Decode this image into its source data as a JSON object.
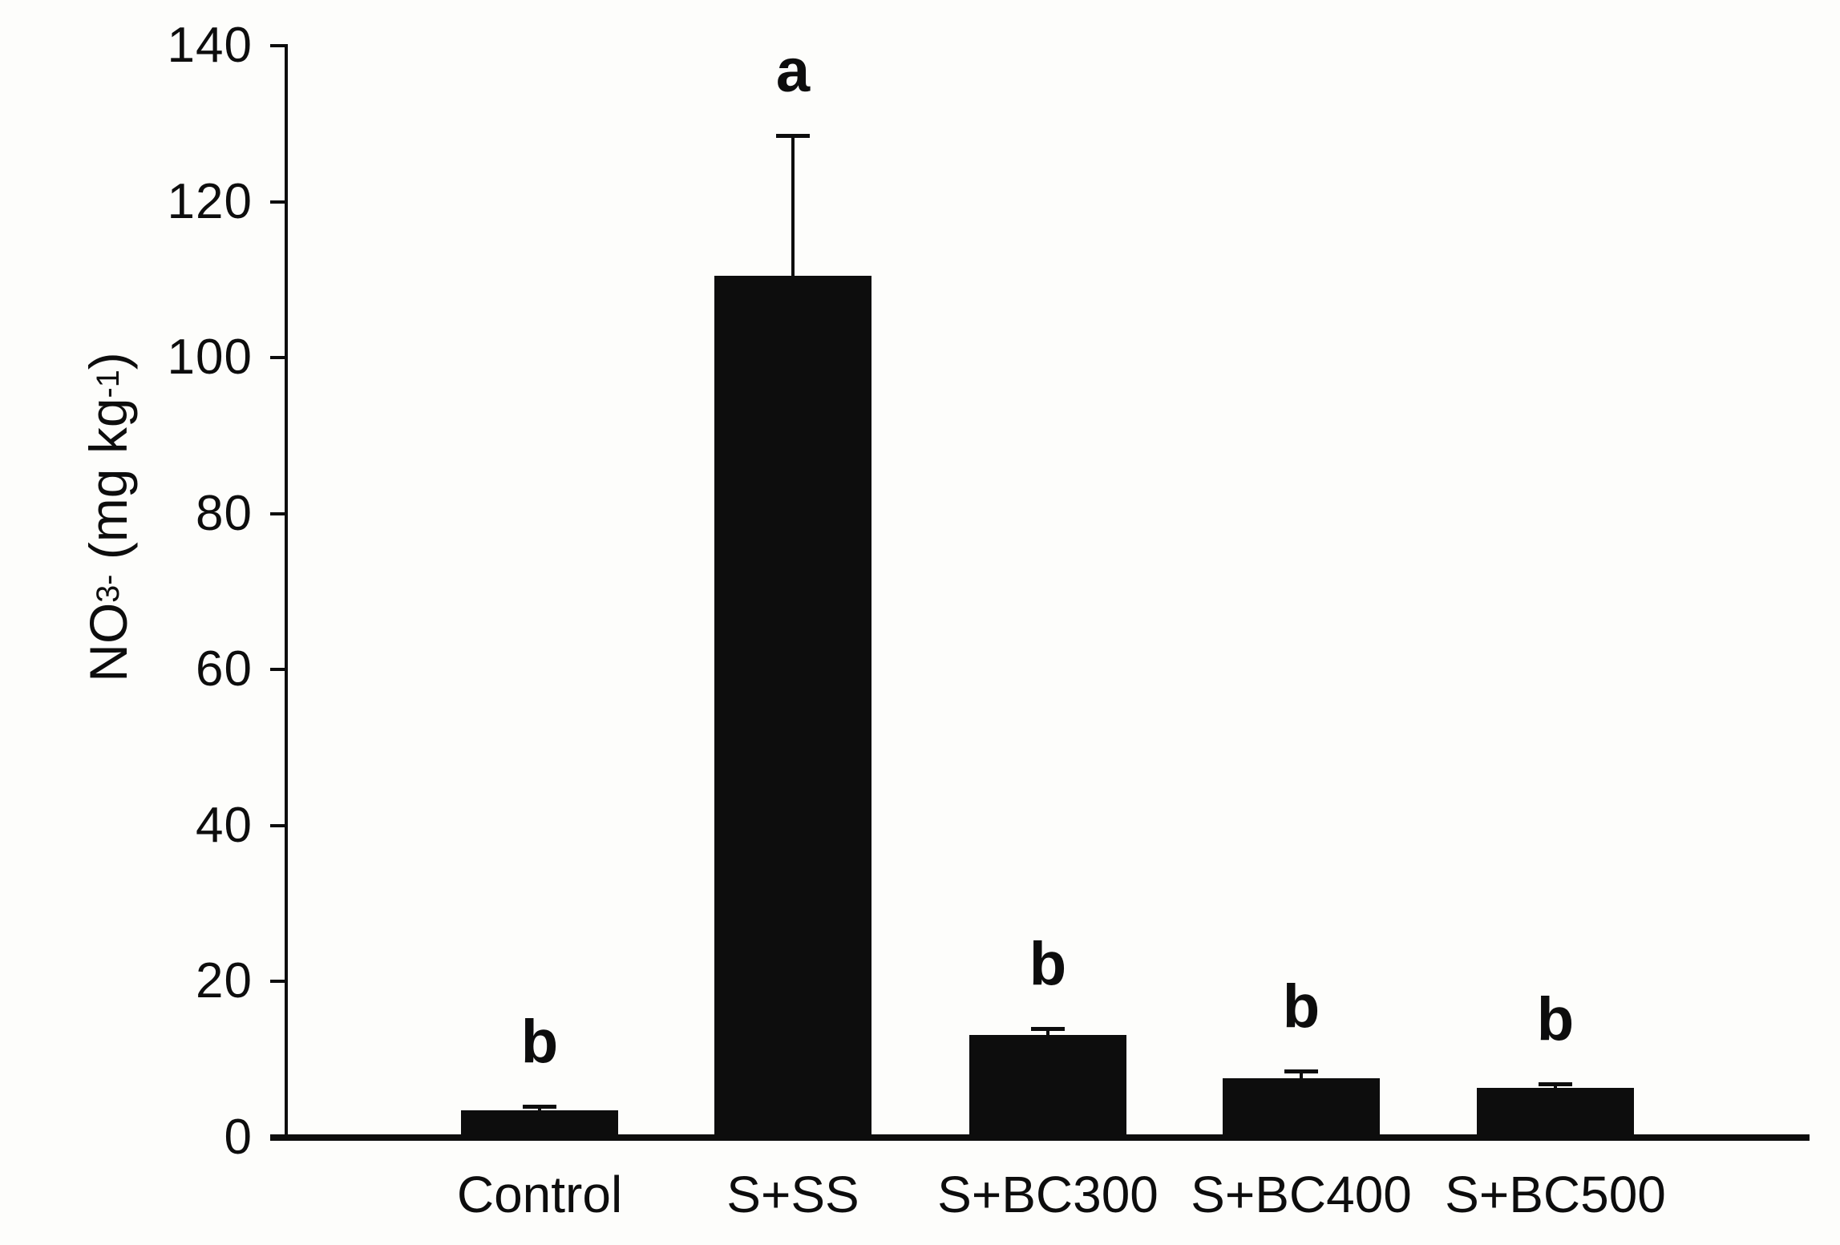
{
  "figure": {
    "background_color": "#fdfdfb",
    "bar_color": "#0d0d0d",
    "axis_color": "#0d0d0d",
    "text_color": "#0d0d0d"
  },
  "chart_data": {
    "type": "bar",
    "title": "",
    "xlabel": "",
    "ylabel": "NO₃⁻ (mg kg⁻¹)",
    "ylabel_parts": [
      {
        "t": "NO"
      },
      {
        "t": "3",
        "style": "sub"
      },
      {
        "t": "-",
        "style": "sup"
      },
      {
        "t": " (mg kg"
      },
      {
        "t": "-1",
        "style": "sup"
      },
      {
        "t": ")"
      }
    ],
    "categories": [
      "Control",
      "S+SS",
      "S+BC300",
      "S+BC400",
      "S+BC500"
    ],
    "values": [
      3.5,
      110.5,
      13.2,
      7.6,
      6.4
    ],
    "error_plus": [
      0.5,
      18.0,
      0.8,
      0.9,
      0.5
    ],
    "sig_letters": [
      "b",
      "a",
      "b",
      "b",
      "b"
    ],
    "ylim": [
      0,
      140
    ],
    "yticks": [
      0,
      20,
      40,
      60,
      80,
      100,
      120,
      140
    ],
    "ytick_labels": [
      "0",
      "20",
      "40",
      "60",
      "80",
      "100",
      "120",
      "140"
    ],
    "grid": false,
    "legend": false,
    "error_bar_direction": "up"
  }
}
